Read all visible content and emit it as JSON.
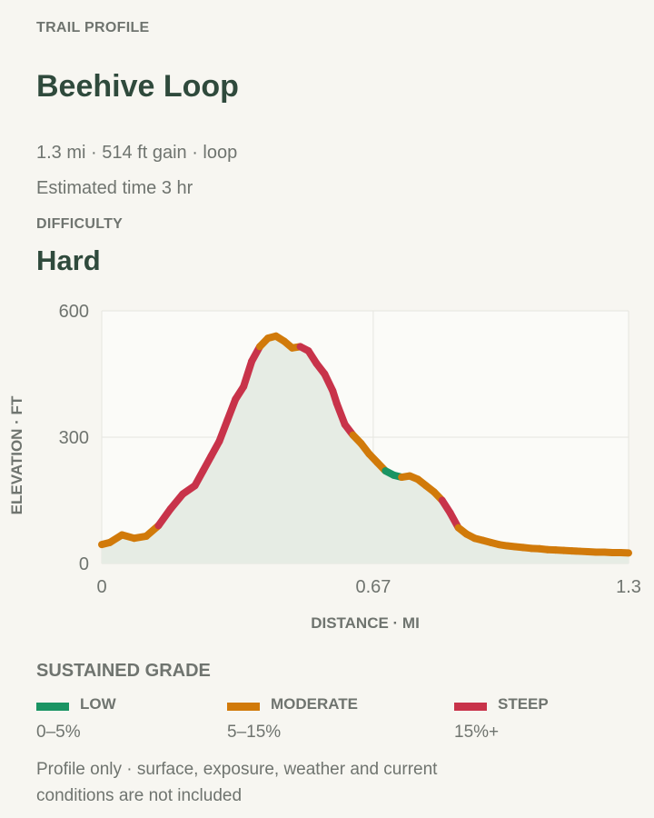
{
  "header": {
    "eyebrow": "TRAIL PROFILE",
    "trail_name": "Beehive Loop",
    "stats": "1.3 mi · 514 ft gain · loop",
    "estimated_time": "Estimated time 3 hr",
    "difficulty_label": "DIFFICULTY",
    "difficulty_value": "Hard"
  },
  "chart_data": {
    "type": "line",
    "xlabel": "DISTANCE · MI",
    "ylabel": "ELEVATION · FT",
    "xlim": [
      0,
      1.3
    ],
    "ylim": [
      0,
      600
    ],
    "x_ticks": [
      "0",
      "0.67",
      "1.3"
    ],
    "x_tick_values": [
      0,
      0.67,
      1.3
    ],
    "y_ticks": [
      "600",
      "300",
      "0"
    ],
    "y_tick_values": [
      600,
      300,
      0
    ],
    "grid": true,
    "fill_under": true,
    "colors": {
      "low": "#1a9463",
      "moderate": "#d17a0a",
      "steep": "#c8334a",
      "fill": "#e6ece4"
    },
    "series": [
      {
        "x": [
          0,
          0.02,
          0.05,
          0.08,
          0.11,
          0.14,
          0.17,
          0.2,
          0.23,
          0.25,
          0.27,
          0.29,
          0.31,
          0.33,
          0.35,
          0.37,
          0.39,
          0.41,
          0.43,
          0.45,
          0.47,
          0.49,
          0.51,
          0.53,
          0.55,
          0.57,
          0.58,
          0.6,
          0.62,
          0.64,
          0.66,
          0.68,
          0.7,
          0.72,
          0.74,
          0.76,
          0.78,
          0.8,
          0.82,
          0.84,
          0.86,
          0.88,
          0.9,
          0.92,
          0.94,
          0.96,
          0.98,
          1.0,
          1.02,
          1.04,
          1.06,
          1.08,
          1.1,
          1.12,
          1.14,
          1.16,
          1.18,
          1.2,
          1.22,
          1.24,
          1.26,
          1.28,
          1.3
        ],
        "y": [
          45,
          50,
          68,
          60,
          65,
          90,
          130,
          165,
          185,
          220,
          255,
          290,
          340,
          390,
          420,
          480,
          515,
          535,
          540,
          528,
          512,
          515,
          505,
          475,
          450,
          410,
          380,
          330,
          305,
          285,
          260,
          240,
          220,
          210,
          205,
          208,
          200,
          185,
          170,
          150,
          120,
          85,
          70,
          60,
          55,
          50,
          45,
          42,
          40,
          38,
          36,
          35,
          33,
          32,
          31,
          30,
          29,
          28,
          27,
          27,
          26,
          26,
          25
        ],
        "grade": [
          "moderate",
          "moderate",
          "moderate",
          "moderate",
          "moderate",
          "steep",
          "steep",
          "steep",
          "steep",
          "steep",
          "steep",
          "steep",
          "steep",
          "steep",
          "steep",
          "steep",
          "moderate",
          "moderate",
          "moderate",
          "moderate",
          "moderate",
          "steep",
          "steep",
          "steep",
          "steep",
          "steep",
          "steep",
          "steep",
          "moderate",
          "moderate",
          "moderate",
          "moderate",
          "low",
          "low",
          "moderate",
          "moderate",
          "moderate",
          "moderate",
          "moderate",
          "steep",
          "steep",
          "moderate",
          "moderate",
          "moderate",
          "moderate",
          "moderate",
          "moderate",
          "moderate",
          "moderate",
          "moderate",
          "moderate",
          "moderate",
          "moderate",
          "moderate",
          "moderate",
          "moderate",
          "moderate",
          "moderate",
          "moderate",
          "moderate",
          "moderate",
          "moderate"
        ]
      }
    ]
  },
  "legend": {
    "title": "SUSTAINED GRADE",
    "items": [
      {
        "label": "LOW",
        "range": "0–5%",
        "color": "#1a9463"
      },
      {
        "label": "MODERATE",
        "range": "5–15%",
        "color": "#d17a0a"
      },
      {
        "label": "STEEP",
        "range": "15%+",
        "color": "#c8334a"
      }
    ]
  },
  "footnote": "Profile only · surface, exposure, weather and current conditions are not included"
}
